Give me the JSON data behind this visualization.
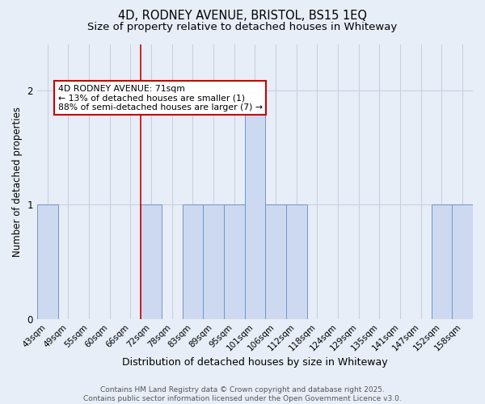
{
  "title_line1": "4D, RODNEY AVENUE, BRISTOL, BS15 1EQ",
  "title_line2": "Size of property relative to detached houses in Whiteway",
  "xlabel": "Distribution of detached houses by size in Whiteway",
  "ylabel": "Number of detached properties",
  "categories": [
    "43sqm",
    "49sqm",
    "55sqm",
    "60sqm",
    "66sqm",
    "72sqm",
    "78sqm",
    "83sqm",
    "89sqm",
    "95sqm",
    "101sqm",
    "106sqm",
    "112sqm",
    "118sqm",
    "124sqm",
    "129sqm",
    "135sqm",
    "141sqm",
    "147sqm",
    "152sqm",
    "158sqm"
  ],
  "values": [
    1,
    0,
    0,
    0,
    0,
    1,
    0,
    1,
    1,
    1,
    2,
    1,
    1,
    0,
    0,
    0,
    0,
    0,
    0,
    1,
    1
  ],
  "bar_color": "#ccd9f0",
  "bar_edge_color": "#7096c8",
  "red_line_x": 4.5,
  "red_line_color": "#cc0000",
  "annotation_text_line1": "4D RODNEY AVENUE: 71sqm",
  "annotation_text_line2": "← 13% of detached houses are smaller (1)",
  "annotation_text_line3": "88% of semi-detached houses are larger (7) →",
  "annotation_box_facecolor": "#ffffff",
  "annotation_box_edgecolor": "#cc0000",
  "ylim": [
    0,
    2.4
  ],
  "yticks": [
    0,
    1,
    2
  ],
  "background_color": "#e8eef8",
  "plot_bg_color": "#e8eef8",
  "grid_color": "#c8d0e0",
  "footer_text": "Contains HM Land Registry data © Crown copyright and database right 2025.\nContains public sector information licensed under the Open Government Licence v3.0.",
  "title_fontsize": 10.5,
  "subtitle_fontsize": 9.5,
  "xlabel_fontsize": 9,
  "ylabel_fontsize": 8.5,
  "tick_fontsize": 7.5,
  "footer_fontsize": 6.5,
  "annotation_fontsize": 7.8
}
